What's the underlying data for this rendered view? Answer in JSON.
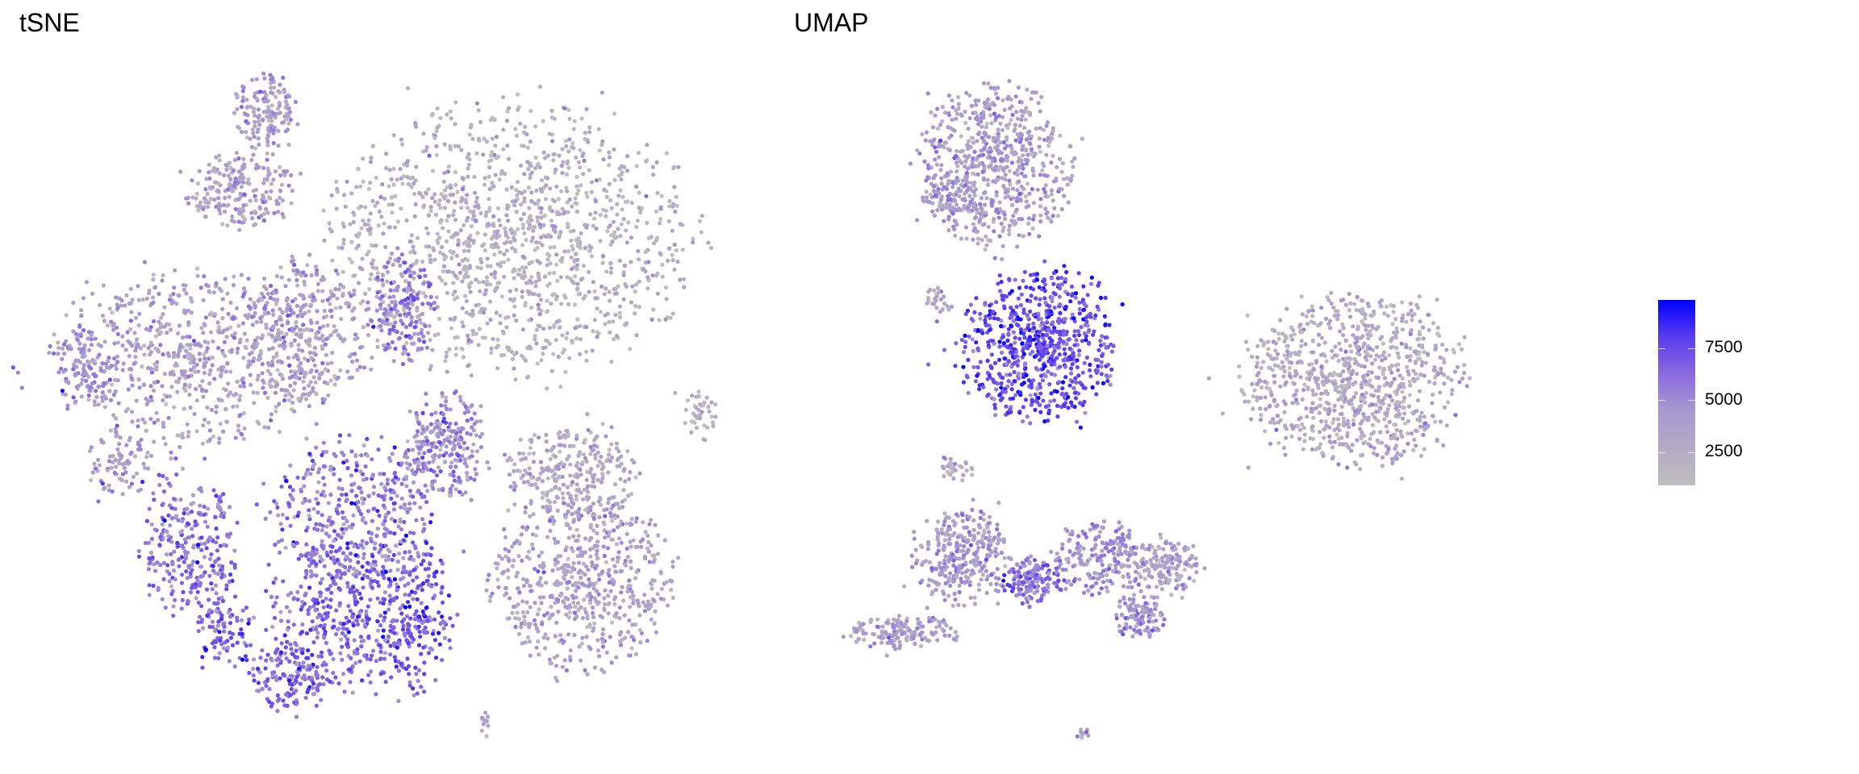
{
  "chart_data": [
    {
      "type": "scatter",
      "title": "tSNE",
      "xlabel": "",
      "ylabel": "",
      "xlim": [
        -50,
        50
      ],
      "ylim": [
        -50,
        50
      ],
      "grid": false,
      "axes_visible": false,
      "note_points": "approximate cell clusters: center, spread, count, mean expression",
      "clusters": [
        {
          "x": -18,
          "y": 44,
          "sx": 4.5,
          "sy": 6.3,
          "n": 150,
          "value": 4000
        },
        {
          "x": -22,
          "y": 32,
          "sx": 8,
          "sy": 5.4,
          "n": 220,
          "value": 3500
        },
        {
          "x": 19,
          "y": 25,
          "sx": 26.8,
          "sy": 19.6,
          "n": 1300,
          "value": 2200
        },
        {
          "x": -29.5,
          "y": 7,
          "sx": 19.6,
          "sy": 12.5,
          "n": 650,
          "value": 3700
        },
        {
          "x": -11.6,
          "y": 11,
          "sx": 8.9,
          "sy": 10.7,
          "n": 320,
          "value": 3500
        },
        {
          "x": 2.7,
          "y": 14.5,
          "sx": 4.5,
          "sy": 8.9,
          "n": 160,
          "value": 5500
        },
        {
          "x": 9,
          "y": -6,
          "sx": 5.4,
          "sy": 8,
          "n": 230,
          "value": 5000
        },
        {
          "x": 27.7,
          "y": -10.5,
          "sx": 9.8,
          "sy": 7.1,
          "n": 280,
          "value": 3000
        },
        {
          "x": 29.5,
          "y": -26.6,
          "sx": 13.4,
          "sy": 12.5,
          "n": 600,
          "value": 3500
        },
        {
          "x": -29.5,
          "y": -21.3,
          "sx": 7.1,
          "sy": 10.7,
          "n": 280,
          "value": 6000
        },
        {
          "x": -4.5,
          "y": -16,
          "sx": 12.5,
          "sy": 10.7,
          "n": 420,
          "value": 5500
        },
        {
          "x": -6.3,
          "y": -32,
          "sx": 10.7,
          "sy": 10.7,
          "n": 380,
          "value": 6500
        },
        {
          "x": 4.5,
          "y": -32,
          "sx": 5.4,
          "sy": 10.7,
          "n": 200,
          "value": 7000
        },
        {
          "x": -15,
          "y": -41,
          "sx": 5.4,
          "sy": 5.4,
          "n": 130,
          "value": 6500
        },
        {
          "x": 47.3,
          "y": -1.6,
          "sx": 2.7,
          "sy": 3.6,
          "n": 40,
          "value": 2000
        },
        {
          "x": -40,
          "y": -9,
          "sx": 4.5,
          "sy": 5.4,
          "n": 80,
          "value": 4000
        },
        {
          "x": -45.5,
          "y": 5.5,
          "sx": 4.5,
          "sy": 5.4,
          "n": 90,
          "value": 4500
        },
        {
          "x": -24,
          "y": -34,
          "sx": 4.5,
          "sy": 5.4,
          "n": 90,
          "value": 6500
        },
        {
          "x": 15.2,
          "y": -48,
          "sx": 0.9,
          "sy": 1.8,
          "n": 10,
          "value": 4000
        }
      ]
    },
    {
      "type": "scatter",
      "title": "UMAP",
      "xlabel": "",
      "ylabel": "",
      "xlim": [
        -10,
        10
      ],
      "ylim": [
        -10,
        10
      ],
      "grid": false,
      "axes_visible": false,
      "note_points": "approximate cell clusters: center, spread, count, mean expression",
      "clusters": [
        {
          "x": -5.4,
          "y": 7.5,
          "sx": 2.3,
          "sy": 2.4,
          "n": 650,
          "value": 3800
        },
        {
          "x": -4.0,
          "y": 2.0,
          "sx": 2.3,
          "sy": 2.2,
          "n": 700,
          "value": 7500
        },
        {
          "x": 6.0,
          "y": 0.9,
          "sx": 3.4,
          "sy": 2.5,
          "n": 900,
          "value": 2800
        },
        {
          "x": -6.5,
          "y": -4.5,
          "sx": 1.5,
          "sy": 1.4,
          "n": 300,
          "value": 4000
        },
        {
          "x": -8.4,
          "y": -6.8,
          "sx": 1.7,
          "sy": 0.5,
          "n": 150,
          "value": 3500
        },
        {
          "x": -4.2,
          "y": -5.2,
          "sx": 0.9,
          "sy": 0.7,
          "n": 150,
          "value": 6000
        },
        {
          "x": -2.0,
          "y": -4.5,
          "sx": 1.5,
          "sy": 1.1,
          "n": 220,
          "value": 4500
        },
        {
          "x": 0.1,
          "y": -4.7,
          "sx": 0.9,
          "sy": 0.9,
          "n": 140,
          "value": 3500
        },
        {
          "x": -0.8,
          "y": -6.3,
          "sx": 0.8,
          "sy": 0.7,
          "n": 110,
          "value": 4500
        },
        {
          "x": -6.7,
          "y": -1.8,
          "sx": 0.6,
          "sy": 0.4,
          "n": 30,
          "value": 2500
        },
        {
          "x": -7.2,
          "y": 3.3,
          "sx": 0.4,
          "sy": 0.5,
          "n": 25,
          "value": 3500
        },
        {
          "x": -6.9,
          "y": 6.7,
          "sx": 0.8,
          "sy": 0.7,
          "n": 60,
          "value": 4500
        },
        {
          "x": -2.6,
          "y": -9.9,
          "sx": 0.3,
          "sy": 0.15,
          "n": 10,
          "value": 4000
        }
      ]
    }
  ],
  "legend": {
    "type": "colorbar",
    "range": [
      920,
      9800
    ],
    "low_color": "#BEBEBE",
    "high_color": "#0000FF",
    "ticks": [
      "7500",
      "5000",
      "2500"
    ]
  }
}
